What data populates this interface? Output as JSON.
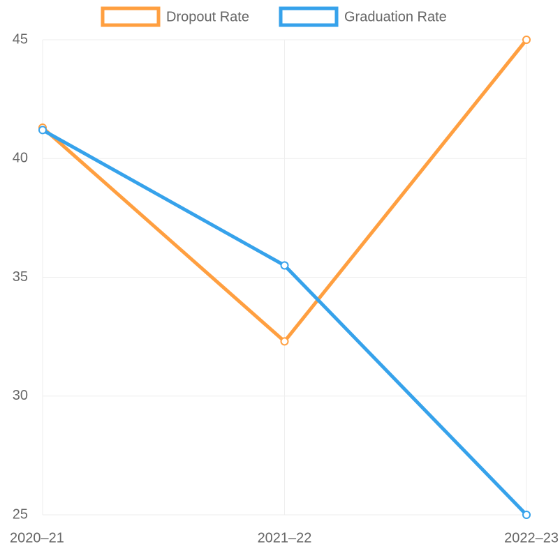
{
  "chart_data": {
    "type": "line",
    "categories": [
      "2020–21",
      "2021–22",
      "2022–23"
    ],
    "series": [
      {
        "name": "Dropout Rate",
        "color": "#ff9f40",
        "values": [
          41.3,
          32.3,
          45
        ]
      },
      {
        "name": "Graduation Rate",
        "color": "#36a2eb",
        "values": [
          41.2,
          35.5,
          25
        ]
      }
    ],
    "ylim": [
      25,
      45
    ],
    "yticks": [
      25,
      30,
      35,
      40,
      45
    ],
    "grid": true,
    "legend": "top"
  }
}
